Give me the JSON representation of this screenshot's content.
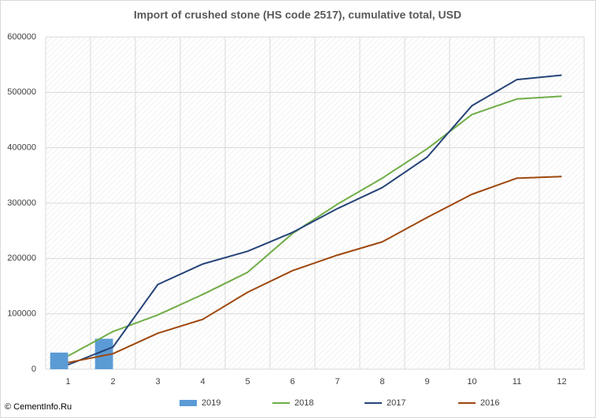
{
  "chart_data": {
    "type": "combo",
    "title": "Import of crushed stone (HS code 2517), cumulative total, USD",
    "watermark": "© CementInfo.Ru",
    "categories": [
      "1",
      "2",
      "3",
      "4",
      "5",
      "6",
      "7",
      "8",
      "9",
      "10",
      "11",
      "12"
    ],
    "series": [
      {
        "name": "2019",
        "type": "bar",
        "color": "#5b9bd5",
        "values": [
          30000,
          55000,
          null,
          null,
          null,
          null,
          null,
          null,
          null,
          null,
          null,
          null
        ]
      },
      {
        "name": "2018",
        "type": "line",
        "color": "#70ad47",
        "values": [
          24000,
          68000,
          98000,
          135000,
          175000,
          245000,
          298000,
          345000,
          398000,
          460000,
          488000,
          493000
        ]
      },
      {
        "name": "2017",
        "type": "line",
        "color": "#264478",
        "values": [
          8000,
          40000,
          153000,
          190000,
          213000,
          247000,
          290000,
          328000,
          383000,
          476000,
          523000,
          531000
        ]
      },
      {
        "name": "2016",
        "type": "line",
        "color": "#9e480e",
        "values": [
          12000,
          28000,
          65000,
          90000,
          139000,
          178000,
          206000,
          230000,
          274000,
          316000,
          345000,
          348000
        ]
      }
    ],
    "ylim": [
      0,
      600000
    ],
    "yticks": [
      0,
      100000,
      200000,
      300000,
      400000,
      500000,
      600000
    ],
    "grid": true,
    "legend": "bottom"
  }
}
